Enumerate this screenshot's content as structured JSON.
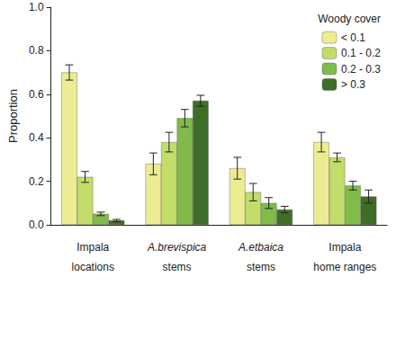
{
  "chart_data": {
    "type": "bar",
    "categories": [
      "Impala\nlocations",
      "A.brevispica\nstems",
      "A.etbaica\nstems",
      "Impala\nhome ranges"
    ],
    "y_label": "Proportion",
    "legend_title": "Woody cover",
    "legend": "upper right",
    "grid": false,
    "ylim": [
      0,
      1.0
    ],
    "yticks": [
      {
        "value": 0,
        "label": "0.0"
      },
      0.2,
      0.4,
      0.6,
      0.8,
      {
        "value": 1.0,
        "label": "1.0"
      }
    ],
    "series": [
      {
        "name": "< 0.1",
        "color": "#eeec92",
        "values": [
          0.7,
          0.28,
          0.26,
          0.38
        ],
        "errors": [
          0.035,
          0.05,
          0.05,
          0.045
        ]
      },
      {
        "name": "0.1 - 0.2",
        "color": "#c3dd6b",
        "values": [
          0.22,
          0.38,
          0.15,
          0.31
        ],
        "errors": [
          0.025,
          0.045,
          0.04,
          0.02
        ]
      },
      {
        "name": "0.2 - 0.3",
        "color": "#80bb4b",
        "values": [
          0.05,
          0.49,
          0.1,
          0.18
        ],
        "errors": [
          0.008,
          0.04,
          0.025,
          0.02
        ]
      },
      {
        "name": "> 0.3",
        "color": "#3e6d27",
        "values": [
          0.02,
          0.57,
          0.07,
          0.13
        ],
        "errors": [
          0.005,
          0.025,
          0.015,
          0.03
        ]
      }
    ]
  }
}
